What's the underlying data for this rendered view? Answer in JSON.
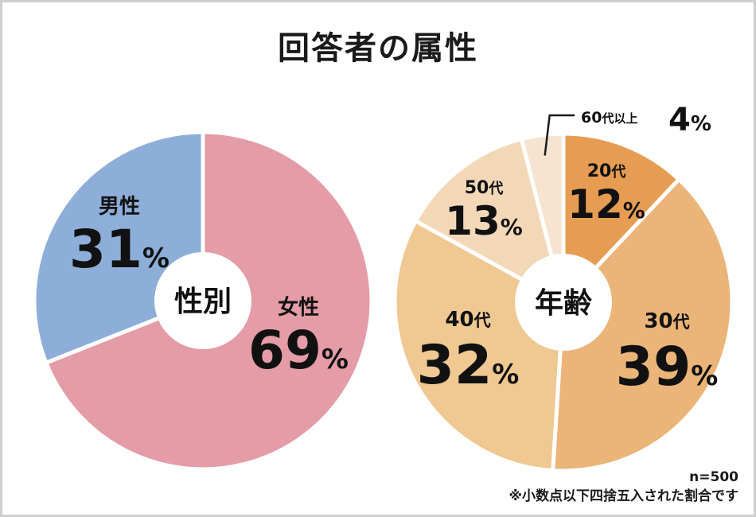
{
  "title": "回答者の属性",
  "chart_data": [
    {
      "type": "pie",
      "title": "性別",
      "slices": [
        {
          "label": "女性",
          "value": 69,
          "color": "#e49ca6"
        },
        {
          "label": "男性",
          "value": 31,
          "color": "#8daed8"
        }
      ]
    },
    {
      "type": "pie",
      "title": "年齢",
      "slices": [
        {
          "label": "20代",
          "value": 12,
          "color": "#e69c52"
        },
        {
          "label": "30代",
          "value": 39,
          "color": "#ebb478"
        },
        {
          "label": "40代",
          "value": 32,
          "color": "#efc892"
        },
        {
          "label": "50代",
          "value": 13,
          "color": "#f3d8b8"
        },
        {
          "label": "60代以上",
          "value": 4,
          "color": "#f6e4d0"
        }
      ]
    }
  ],
  "footnotes": {
    "sample": "n=500",
    "rounding": "※小数点以下四捨五入された割合です"
  }
}
